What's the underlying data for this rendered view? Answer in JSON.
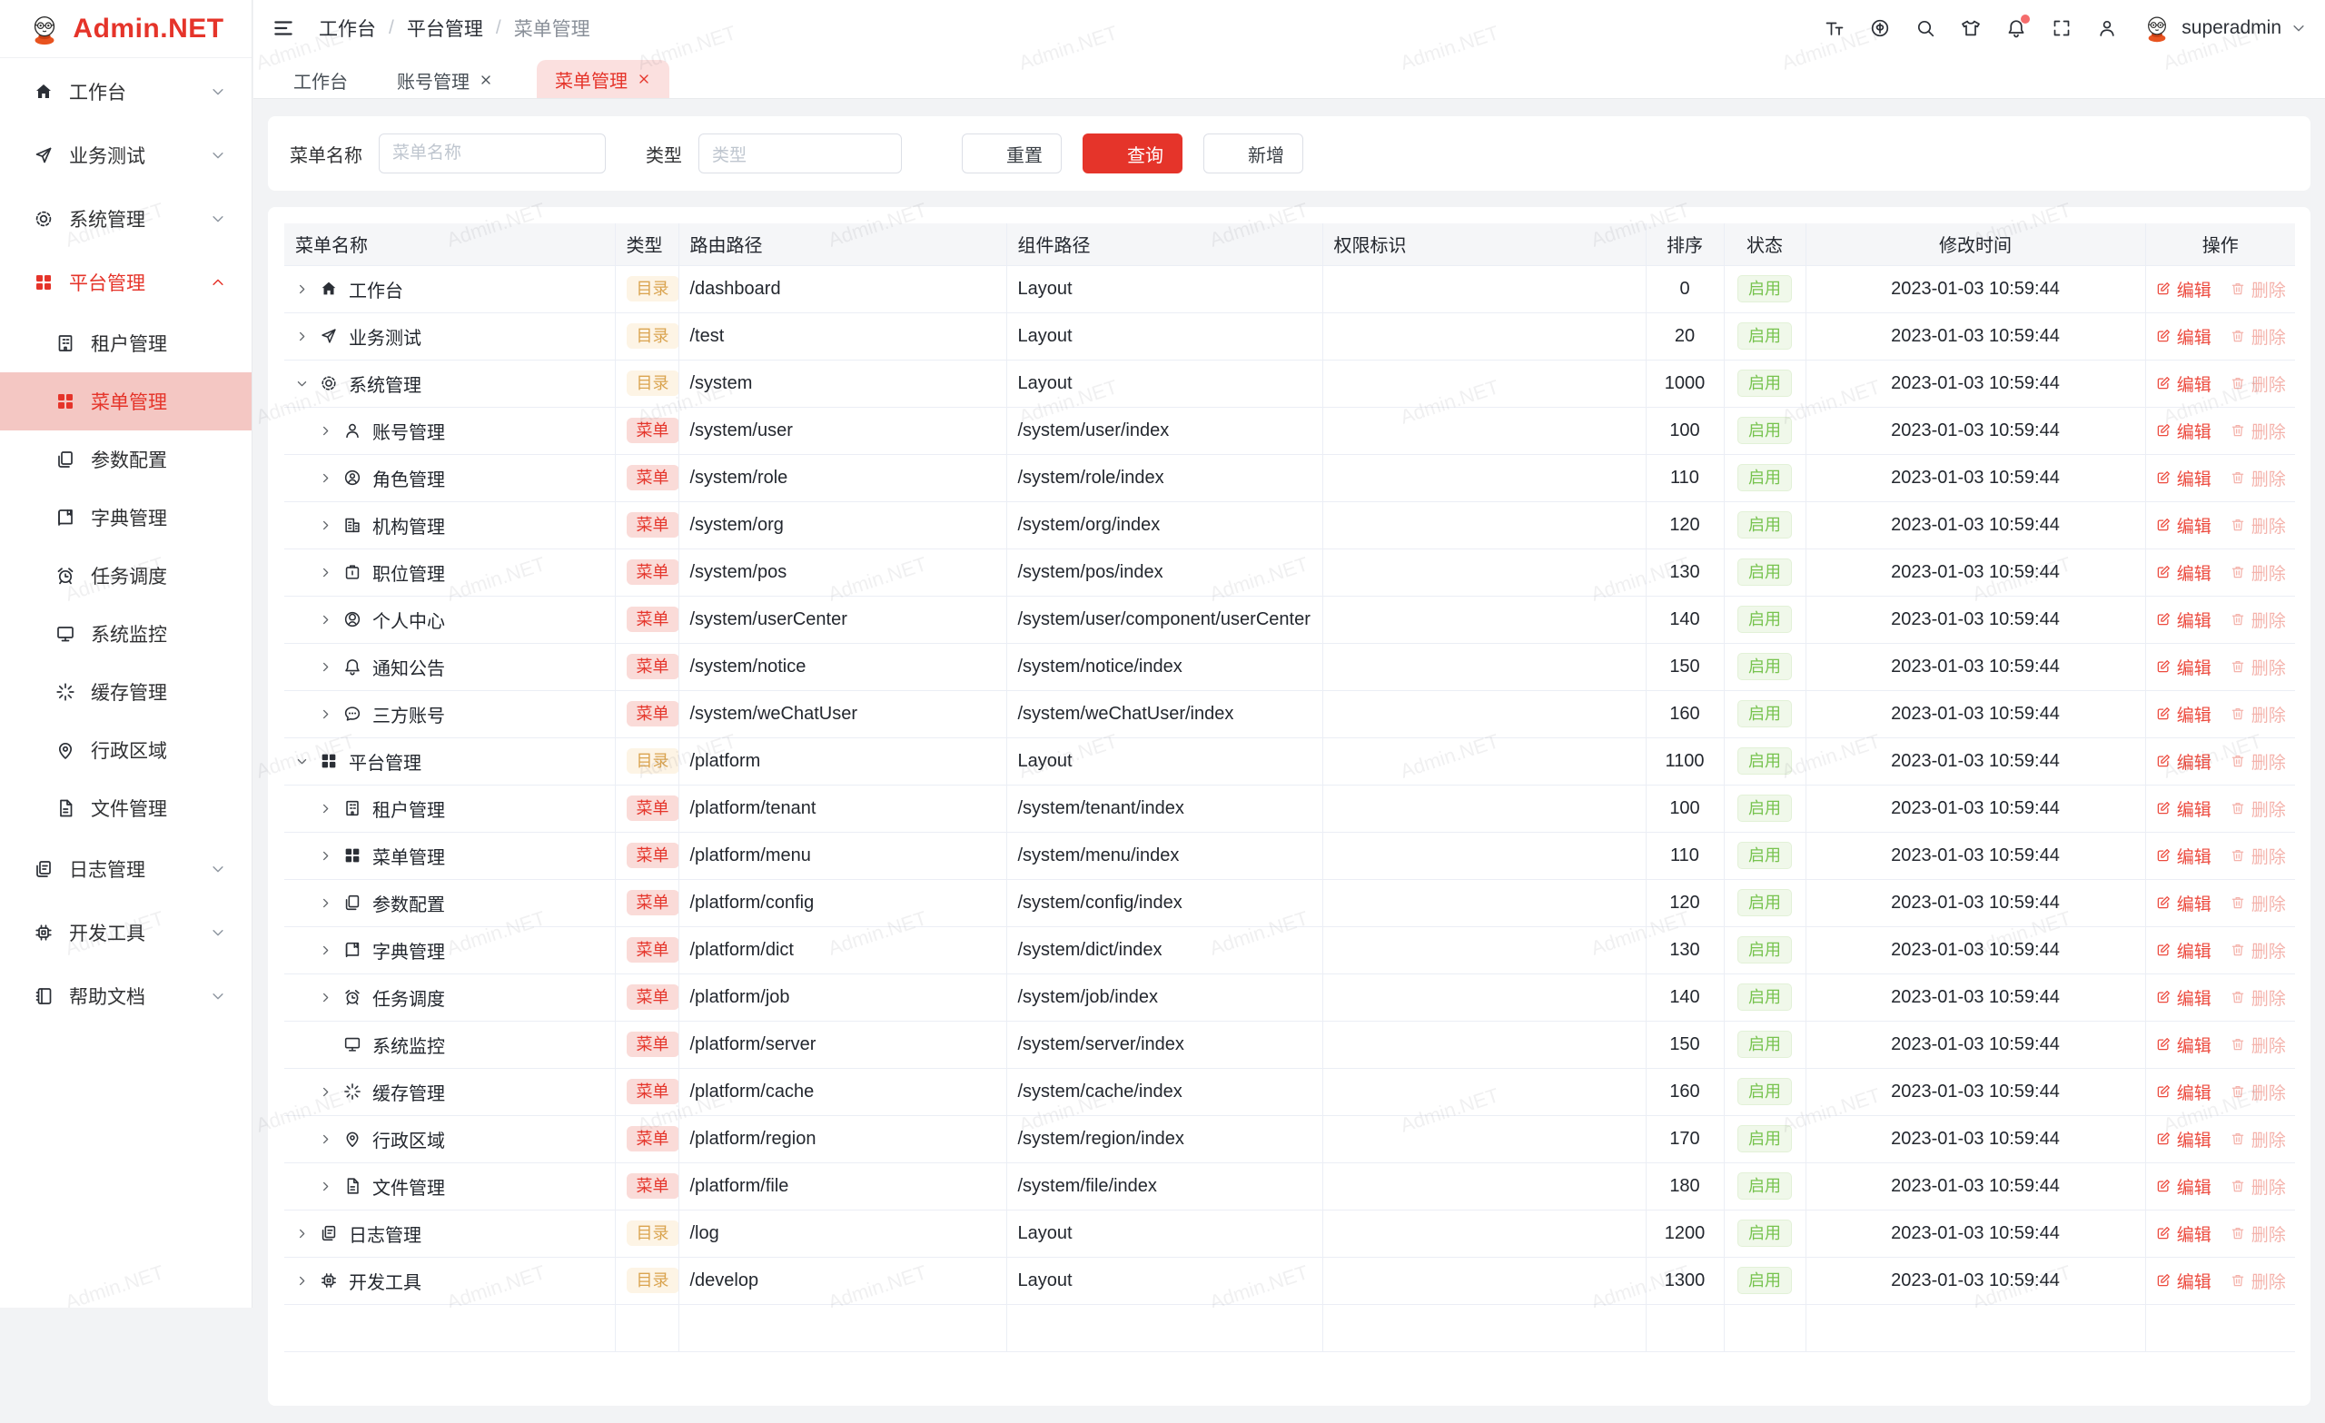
{
  "app": {
    "name": "Admin.NET",
    "watermark": "Admin.NET"
  },
  "header": {
    "breadcrumb": [
      "工作台",
      "平台管理",
      "菜单管理"
    ],
    "icons": [
      {
        "name": "font-size-icon",
        "key": "tt"
      },
      {
        "name": "language-icon",
        "key": "lang"
      },
      {
        "name": "search-icon",
        "key": "search"
      },
      {
        "name": "theme-icon",
        "key": "shirt"
      },
      {
        "name": "notification-bell-icon",
        "key": "bell",
        "badge": true
      },
      {
        "name": "fullscreen-icon",
        "key": "fs"
      },
      {
        "name": "user-icon",
        "key": "person"
      }
    ],
    "username": "superadmin"
  },
  "tabs": [
    {
      "label": "工作台",
      "closable": false,
      "active": false
    },
    {
      "label": "账号管理",
      "closable": true,
      "active": false
    },
    {
      "label": "菜单管理",
      "closable": true,
      "active": true
    }
  ],
  "sidebar": {
    "items": [
      {
        "label": "工作台",
        "icon": "home",
        "level": 1,
        "chevron": "down"
      },
      {
        "label": "业务测试",
        "icon": "send",
        "level": 1,
        "chevron": "down"
      },
      {
        "label": "系统管理",
        "icon": "gear",
        "level": 1,
        "chevron": "down"
      },
      {
        "label": "平台管理",
        "icon": "grid",
        "level": 1,
        "chevron": "up",
        "parentActive": true
      },
      {
        "label": "租户管理",
        "icon": "building",
        "level": 2
      },
      {
        "label": "菜单管理",
        "icon": "grid",
        "level": 2,
        "selected": true
      },
      {
        "label": "参数配置",
        "icon": "docs",
        "level": 2
      },
      {
        "label": "字典管理",
        "icon": "book",
        "level": 2
      },
      {
        "label": "任务调度",
        "icon": "clock",
        "level": 2
      },
      {
        "label": "系统监控",
        "icon": "monitor",
        "level": 2
      },
      {
        "label": "缓存管理",
        "icon": "spark",
        "level": 2
      },
      {
        "label": "行政区域",
        "icon": "pin",
        "level": 2
      },
      {
        "label": "文件管理",
        "icon": "file",
        "level": 2
      },
      {
        "label": "日志管理",
        "icon": "log",
        "level": 1,
        "chevron": "down"
      },
      {
        "label": "开发工具",
        "icon": "chip",
        "level": 1,
        "chevron": "down"
      },
      {
        "label": "帮助文档",
        "icon": "notebook",
        "level": 1,
        "chevron": "down"
      }
    ]
  },
  "filter": {
    "name_label": "菜单名称",
    "name_placeholder": "菜单名称",
    "name_value": "",
    "type_label": "类型",
    "type_placeholder": "类型",
    "reset_label": "重置",
    "search_label": "查询",
    "add_label": "新增"
  },
  "table": {
    "columns": [
      "菜单名称",
      "类型",
      "路由路径",
      "组件路径",
      "权限标识",
      "排序",
      "状态",
      "修改时间",
      "操作"
    ],
    "edit_label": "编辑",
    "delete_label": "删除",
    "rows": [
      {
        "name": "工作台",
        "icon": "home",
        "indent": 1,
        "arrow": "right",
        "type": "目录",
        "path": "/dashboard",
        "component": "Layout",
        "perm": "",
        "sort": "0",
        "status": "启用",
        "time": "2023-01-03 10:59:44"
      },
      {
        "name": "业务测试",
        "icon": "send",
        "indent": 1,
        "arrow": "right",
        "type": "目录",
        "path": "/test",
        "component": "Layout",
        "perm": "",
        "sort": "20",
        "status": "启用",
        "time": "2023-01-03 10:59:44"
      },
      {
        "name": "系统管理",
        "icon": "gear",
        "indent": 1,
        "arrow": "down",
        "type": "目录",
        "path": "/system",
        "component": "Layout",
        "perm": "",
        "sort": "1000",
        "status": "启用",
        "time": "2023-01-03 10:59:44"
      },
      {
        "name": "账号管理",
        "icon": "user",
        "indent": 2,
        "arrow": "right",
        "type": "菜单",
        "path": "/system/user",
        "component": "/system/user/index",
        "perm": "",
        "sort": "100",
        "status": "启用",
        "time": "2023-01-03 10:59:44"
      },
      {
        "name": "角色管理",
        "icon": "role",
        "indent": 2,
        "arrow": "right",
        "type": "菜单",
        "path": "/system/role",
        "component": "/system/role/index",
        "perm": "",
        "sort": "110",
        "status": "启用",
        "time": "2023-01-03 10:59:44"
      },
      {
        "name": "机构管理",
        "icon": "org",
        "indent": 2,
        "arrow": "right",
        "type": "菜单",
        "path": "/system/org",
        "component": "/system/org/index",
        "perm": "",
        "sort": "120",
        "status": "启用",
        "time": "2023-01-03 10:59:44"
      },
      {
        "name": "职位管理",
        "icon": "pos",
        "indent": 2,
        "arrow": "right",
        "type": "菜单",
        "path": "/system/pos",
        "component": "/system/pos/index",
        "perm": "",
        "sort": "130",
        "status": "启用",
        "time": "2023-01-03 10:59:44"
      },
      {
        "name": "个人中心",
        "icon": "usercenter",
        "indent": 2,
        "arrow": "right",
        "type": "菜单",
        "path": "/system/userCenter",
        "component": "/system/user/component/userCenter",
        "perm": "",
        "sort": "140",
        "status": "启用",
        "time": "2023-01-03 10:59:44"
      },
      {
        "name": "通知公告",
        "icon": "bell",
        "indent": 2,
        "arrow": "right",
        "type": "菜单",
        "path": "/system/notice",
        "component": "/system/notice/index",
        "perm": "",
        "sort": "150",
        "status": "启用",
        "time": "2023-01-03 10:59:44"
      },
      {
        "name": "三方账号",
        "icon": "chat",
        "indent": 2,
        "arrow": "right",
        "type": "菜单",
        "path": "/system/weChatUser",
        "component": "/system/weChatUser/index",
        "perm": "",
        "sort": "160",
        "status": "启用",
        "time": "2023-01-03 10:59:44"
      },
      {
        "name": "平台管理",
        "icon": "grid",
        "indent": 1,
        "arrow": "down",
        "type": "目录",
        "path": "/platform",
        "component": "Layout",
        "perm": "",
        "sort": "1100",
        "status": "启用",
        "time": "2023-01-03 10:59:44"
      },
      {
        "name": "租户管理",
        "icon": "building",
        "indent": 2,
        "arrow": "right",
        "type": "菜单",
        "path": "/platform/tenant",
        "component": "/system/tenant/index",
        "perm": "",
        "sort": "100",
        "status": "启用",
        "time": "2023-01-03 10:59:44"
      },
      {
        "name": "菜单管理",
        "icon": "grid",
        "indent": 2,
        "arrow": "right",
        "type": "菜单",
        "path": "/platform/menu",
        "component": "/system/menu/index",
        "perm": "",
        "sort": "110",
        "status": "启用",
        "time": "2023-01-03 10:59:44"
      },
      {
        "name": "参数配置",
        "icon": "docs",
        "indent": 2,
        "arrow": "right",
        "type": "菜单",
        "path": "/platform/config",
        "component": "/system/config/index",
        "perm": "",
        "sort": "120",
        "status": "启用",
        "time": "2023-01-03 10:59:44"
      },
      {
        "name": "字典管理",
        "icon": "book",
        "indent": 2,
        "arrow": "right",
        "type": "菜单",
        "path": "/platform/dict",
        "component": "/system/dict/index",
        "perm": "",
        "sort": "130",
        "status": "启用",
        "time": "2023-01-03 10:59:44"
      },
      {
        "name": "任务调度",
        "icon": "clock",
        "indent": 2,
        "arrow": "right",
        "type": "菜单",
        "path": "/platform/job",
        "component": "/system/job/index",
        "perm": "",
        "sort": "140",
        "status": "启用",
        "time": "2023-01-03 10:59:44"
      },
      {
        "name": "系统监控",
        "icon": "monitor",
        "indent": 2,
        "arrow": "none",
        "type": "菜单",
        "path": "/platform/server",
        "component": "/system/server/index",
        "perm": "",
        "sort": "150",
        "status": "启用",
        "time": "2023-01-03 10:59:44"
      },
      {
        "name": "缓存管理",
        "icon": "spark",
        "indent": 2,
        "arrow": "right",
        "type": "菜单",
        "path": "/platform/cache",
        "component": "/system/cache/index",
        "perm": "",
        "sort": "160",
        "status": "启用",
        "time": "2023-01-03 10:59:44"
      },
      {
        "name": "行政区域",
        "icon": "pin",
        "indent": 2,
        "arrow": "right",
        "type": "菜单",
        "path": "/platform/region",
        "component": "/system/region/index",
        "perm": "",
        "sort": "170",
        "status": "启用",
        "time": "2023-01-03 10:59:44"
      },
      {
        "name": "文件管理",
        "icon": "file",
        "indent": 2,
        "arrow": "right",
        "type": "菜单",
        "path": "/platform/file",
        "component": "/system/file/index",
        "perm": "",
        "sort": "180",
        "status": "启用",
        "time": "2023-01-03 10:59:44"
      },
      {
        "name": "日志管理",
        "icon": "log",
        "indent": 1,
        "arrow": "right",
        "type": "目录",
        "path": "/log",
        "component": "Layout",
        "perm": "",
        "sort": "1200",
        "status": "启用",
        "time": "2023-01-03 10:59:44"
      },
      {
        "name": "开发工具",
        "icon": "chip",
        "indent": 1,
        "arrow": "right",
        "type": "目录",
        "path": "/develop",
        "component": "Layout",
        "perm": "",
        "sort": "1300",
        "status": "启用",
        "time": "2023-01-03 10:59:44"
      }
    ]
  },
  "colors": {
    "primary_red": "#e5342a",
    "sidebar_selected_bg": "#f4c7c3",
    "tab_active_bg": "#fbe0df",
    "badge_dir_bg": "#fdf4e5",
    "badge_dir_text": "#daa450",
    "badge_menu_bg": "#fadbd8",
    "badge_menu_text": "#e5352b",
    "status_bg": "#f0f8ea",
    "status_text": "#77c34f",
    "edit_link": "#ec4a3e",
    "delete_link": "#f4b3ac"
  }
}
